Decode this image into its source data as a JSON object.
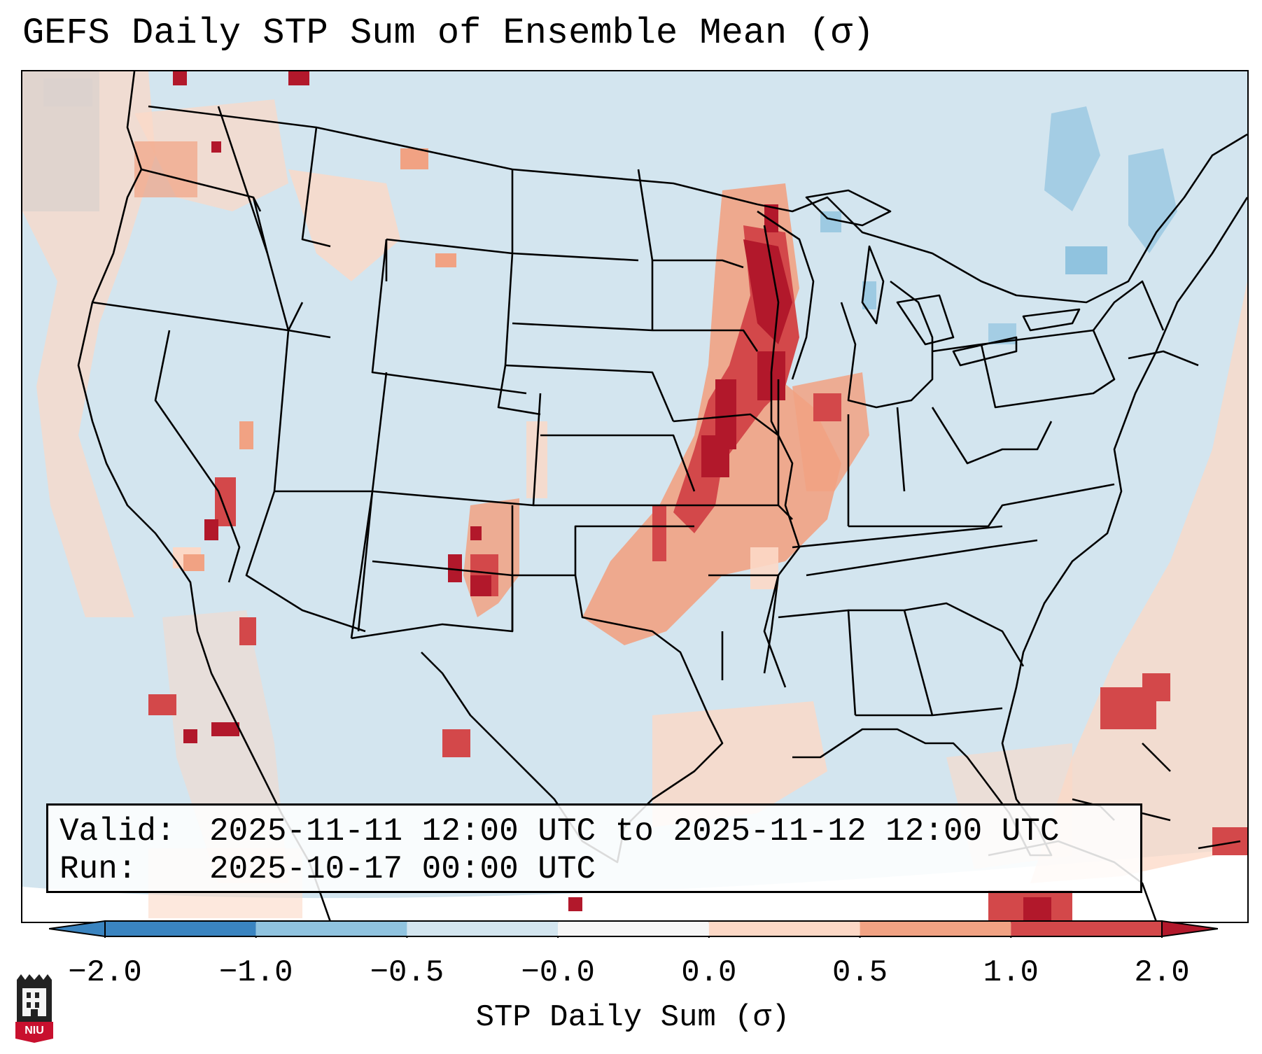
{
  "title": "GEFS Daily STP Sum of Ensemble Mean (σ)",
  "info": {
    "valid_label": "Valid:",
    "valid_value": "2025-11-11 12:00 UTC to 2025-11-12 12:00 UTC",
    "run_label": "Run:",
    "run_value": "2025-10-17 00:00 UTC"
  },
  "colorbar": {
    "label": "STP Daily Sum (σ)",
    "ticks": [
      "−2.0",
      "−1.0",
      "−0.5",
      "−0.0",
      "0.0",
      "0.5",
      "1.0",
      "2.0"
    ],
    "colors": [
      "#3a84c0",
      "#90c3df",
      "#d3e5ef",
      "#f6f6f6",
      "#fcd8c6",
      "#f1a283",
      "#d3484a",
      "#b2182b"
    ],
    "extend": "both"
  },
  "logo": {
    "text": "NIU"
  },
  "legend_colors": {
    "low": "#b2182b",
    "mid": "#d3484a",
    "warm": "#f1a283",
    "pale": "#fcd8c6",
    "neutral": "#d3e5ef",
    "cool": "#90c3df",
    "cold": "#3a84c0"
  }
}
